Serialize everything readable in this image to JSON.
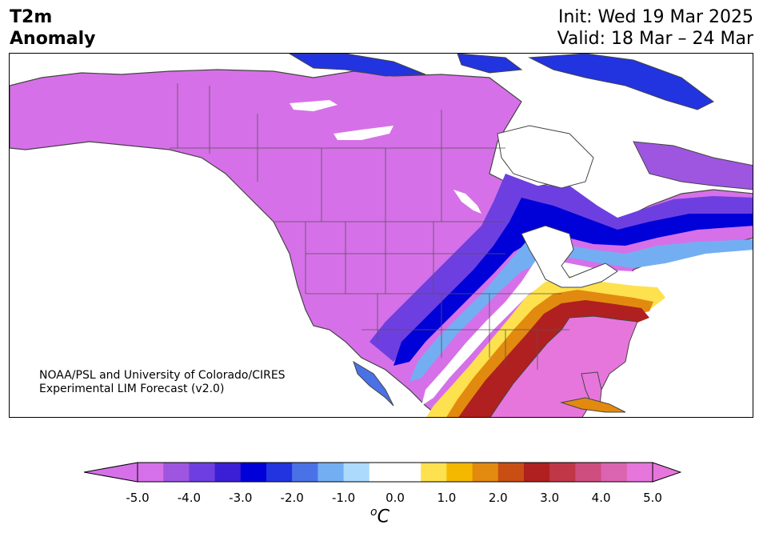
{
  "title": {
    "line1": "T2m",
    "line2": "Anomaly"
  },
  "header_right": {
    "init": "Init: Wed 19 Mar 2025",
    "valid": "Valid: 18 Mar – 24 Mar"
  },
  "credit": {
    "line1": "NOAA/PSL and University of Colorado/CIRES",
    "line2": "Experimental LIM Forecast (v2.0)"
  },
  "colorbar": {
    "ticks": [
      "-5.0",
      "-4.0",
      "-3.0",
      "-2.0",
      "-1.0",
      "0.0",
      "1.0",
      "2.0",
      "3.0",
      "4.0",
      "5.0"
    ],
    "colors": [
      "#d670e8",
      "#9e56e0",
      "#6e3fe0",
      "#3b1fd6",
      "#0000d8",
      "#2233e0",
      "#4a72e6",
      "#73aef3",
      "#acdafc",
      "#ffffff",
      "#ffffff",
      "#fde14e",
      "#f4b800",
      "#e28a0f",
      "#c84e14",
      "#b02020",
      "#c03848",
      "#cf4e80",
      "#db64b0",
      "#e676dc"
    ],
    "under_color": "#d670e8",
    "over_color": "#e676dc",
    "unit_sup": "o",
    "unit": "C"
  },
  "map": {
    "region": "North America",
    "variable": "2m temperature anomaly",
    "colors": {
      "cold_max": "#d670e8",
      "warm_max": "#e676dc",
      "ocean": "#ffffff"
    }
  }
}
